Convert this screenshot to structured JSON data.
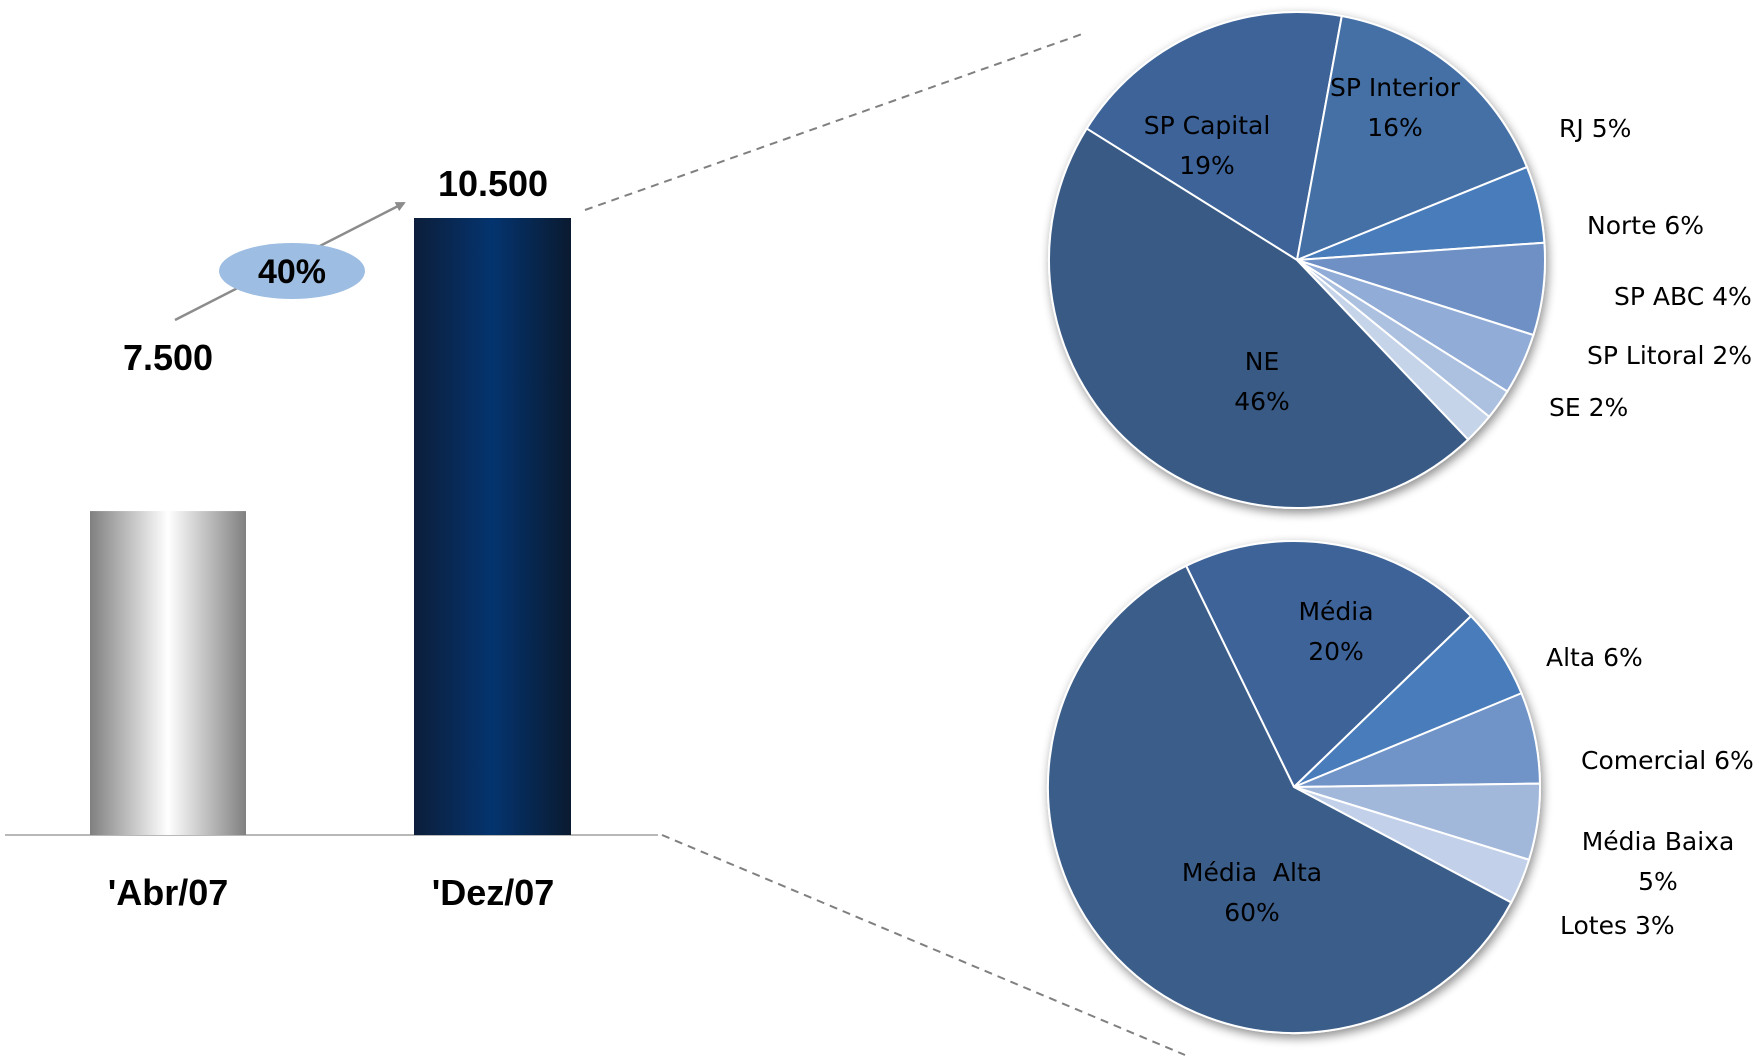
{
  "chart_data": [
    {
      "type": "bar",
      "categories": [
        "'Abr/07",
        "'Dez/07"
      ],
      "values": [
        7500,
        10500
      ],
      "value_labels": [
        "7.500",
        "10.500"
      ],
      "growth_label": "40%",
      "bar_styles": [
        "silver-gradient",
        "navy-gradient"
      ],
      "colors": {
        "silver_dark": "#8c8c8c",
        "silver_light": "#ffffff",
        "navy_dark": "#0c2140",
        "navy_mid": "#04316a",
        "bubble": "#9dbde2",
        "arrow": "#8c8c8c",
        "axis": "#a0a0a0"
      }
    },
    {
      "type": "pie",
      "slices": [
        {
          "label": "SP Capital",
          "value": 19,
          "text": "19%",
          "color": "#3d6499",
          "label_inside": true
        },
        {
          "label": "SP Interior",
          "value": 16,
          "text": "16%",
          "color": "#4570a6",
          "label_inside": true
        },
        {
          "label": "RJ",
          "value": 5,
          "text": "RJ 5%",
          "color": "#4a7cbb",
          "label_inside": false
        },
        {
          "label": "Norte",
          "value": 6,
          "text": "Norte 6%",
          "color": "#6e90c5",
          "label_inside": false
        },
        {
          "label": "SP ABC",
          "value": 4,
          "text": "SP ABC 4%",
          "color": "#91acd7",
          "label_inside": false
        },
        {
          "label": "SP Litoral",
          "value": 2,
          "text": "SP Litoral 2%",
          "color": "#acc0e0",
          "label_inside": false
        },
        {
          "label": "SE",
          "value": 2,
          "text": "SE 2%",
          "color": "#c6d4ea",
          "label_inside": false
        },
        {
          "label": "NE",
          "value": 46,
          "text": "46%",
          "color": "#375a85",
          "label_inside": true
        }
      ]
    },
    {
      "type": "pie",
      "slices": [
        {
          "label": "Média",
          "value": 20,
          "text": "20%",
          "color": "#3d6499",
          "label_inside": true
        },
        {
          "label": "Alta",
          "value": 6,
          "text": "Alta 6%",
          "color": "#4a7cbb",
          "label_inside": false
        },
        {
          "label": "Comercial",
          "value": 6,
          "text": "Comercial 6%",
          "color": "#7094c8",
          "label_inside": false
        },
        {
          "label": "Média Baixa",
          "value": 5,
          "text": "5%",
          "color": "#a2b8db",
          "label_inside": false
        },
        {
          "label": "Lotes",
          "value": 3,
          "text": "Lotes 3%",
          "color": "#c2d1e9",
          "label_inside": false
        },
        {
          "label": "Média  Alta",
          "value": 60,
          "text": "60%",
          "color": "#3a5d8a",
          "label_inside": true
        }
      ]
    }
  ]
}
